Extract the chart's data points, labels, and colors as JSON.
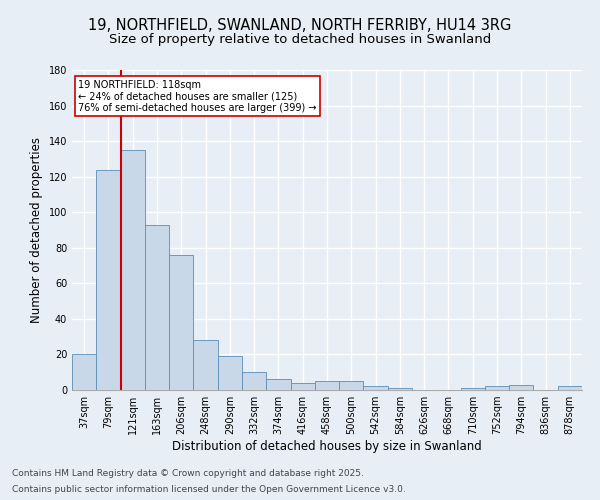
{
  "title1": "19, NORTHFIELD, SWANLAND, NORTH FERRIBY, HU14 3RG",
  "title2": "Size of property relative to detached houses in Swanland",
  "xlabel": "Distribution of detached houses by size in Swanland",
  "ylabel": "Number of detached properties",
  "categories": [
    "37sqm",
    "79sqm",
    "121sqm",
    "163sqm",
    "206sqm",
    "248sqm",
    "290sqm",
    "332sqm",
    "374sqm",
    "416sqm",
    "458sqm",
    "500sqm",
    "542sqm",
    "584sqm",
    "626sqm",
    "668sqm",
    "710sqm",
    "752sqm",
    "794sqm",
    "836sqm",
    "878sqm"
  ],
  "values": [
    20,
    124,
    135,
    93,
    76,
    28,
    19,
    10,
    6,
    4,
    5,
    5,
    2,
    1,
    0,
    0,
    1,
    2,
    3,
    0,
    2
  ],
  "bar_color": "#c8d8e8",
  "bar_edge_color": "#5b8db8",
  "vline_color": "#cc0000",
  "vline_bin": 2,
  "annotation_text": "19 NORTHFIELD: 118sqm\n← 24% of detached houses are smaller (125)\n76% of semi-detached houses are larger (399) →",
  "annotation_box_facecolor": "#ffffff",
  "annotation_box_edgecolor": "#cc0000",
  "ylim": [
    0,
    180
  ],
  "yticks": [
    0,
    20,
    40,
    60,
    80,
    100,
    120,
    140,
    160,
    180
  ],
  "footer1": "Contains HM Land Registry data © Crown copyright and database right 2025.",
  "footer2": "Contains public sector information licensed under the Open Government Licence v3.0.",
  "bg_color": "#e8eef5",
  "plot_bg_color": "#e8eef5",
  "title_fontsize": 10.5,
  "subtitle_fontsize": 9.5,
  "tick_fontsize": 7,
  "label_fontsize": 8.5,
  "footer_fontsize": 6.5,
  "annotation_fontsize": 7
}
